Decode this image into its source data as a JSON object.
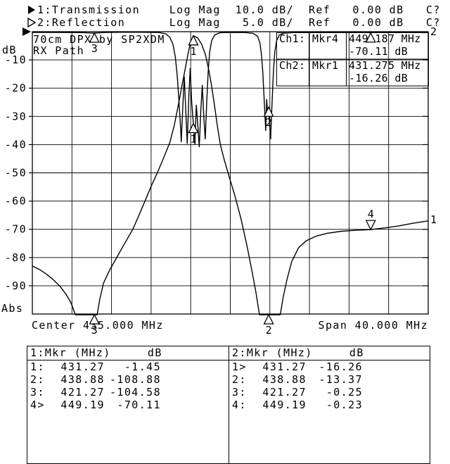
{
  "colors": {
    "fg": "#000000",
    "bg": "#ffffff"
  },
  "header": {
    "ch1_line": "1:Transmission    Log Mag  10.0 dB/  Ref   0.00 dB   C?",
    "ch2_line": "2:Reflection      Log Mag   5.0 dB/  Ref   0.00 dB   C?"
  },
  "graph": {
    "title_line1": "70cm DPX by SP2XDM",
    "title_line2": "RX Path",
    "y_axis_top_label": "dB",
    "y_axis_bottom_label": "Abs",
    "x_axis_left_label": "Center 435.000 MHz",
    "x_axis_right_label": "Span 40.000 MHz",
    "trace_end_label_ch1": "1",
    "trace_end_label_ch2": "2",
    "readouts": [
      {
        "ch": "Ch1:",
        "mkr": "Mkr4",
        "value_line1": "449.187 MHz",
        "value_line2": "-70.11 dB"
      },
      {
        "ch": "Ch2:",
        "mkr": "Mkr1",
        "value_line1": "431.275 MHz",
        "value_line2": "-16.26 dB"
      }
    ]
  },
  "chart_data": {
    "type": "line",
    "title": "70cm DPX by SP2XDM RX Path",
    "x_axis": {
      "center_mhz": 435.0,
      "span_mhz": 40.0,
      "start_mhz": 415.0,
      "stop_mhz": 455.0,
      "divisions": 10
    },
    "y_axis": {
      "ref_db": 0.0,
      "divisions": 10,
      "tick_labels": [
        "-10",
        "-20",
        "-30",
        "-40",
        "-50",
        "-60",
        "-70",
        "-80",
        "-90"
      ],
      "units": "dB",
      "mode": "Abs"
    },
    "series": [
      {
        "name": "ch1-transmission",
        "db_per_div": 10,
        "points": [
          [
            415.0,
            -83.0
          ],
          [
            415.7,
            -84.2
          ],
          [
            416.4,
            -85.8
          ],
          [
            417.1,
            -87.8
          ],
          [
            417.8,
            -90.2
          ],
          [
            418.4,
            -93.0
          ],
          [
            418.9,
            -96.0
          ],
          [
            419.35,
            -100.8
          ],
          [
            421.55,
            -100.8
          ],
          [
            421.8,
            -95.0
          ],
          [
            422.2,
            -89.0
          ],
          [
            422.8,
            -84.5
          ],
          [
            423.4,
            -80.8
          ],
          [
            424.0,
            -77.0
          ],
          [
            424.6,
            -73.4
          ],
          [
            425.2,
            -69.6
          ],
          [
            425.8,
            -64.8
          ],
          [
            426.4,
            -59.8
          ],
          [
            427.0,
            -54.8
          ],
          [
            427.7,
            -49.4
          ],
          [
            428.3,
            -44.4
          ],
          [
            428.9,
            -39.2
          ],
          [
            429.35,
            -33.0
          ],
          [
            429.75,
            -26.0
          ],
          [
            430.1,
            -19.5
          ],
          [
            430.45,
            -13.0
          ],
          [
            430.75,
            -7.5
          ],
          [
            431.0,
            -3.6
          ],
          [
            431.27,
            -1.45
          ],
          [
            431.7,
            -2.2
          ],
          [
            432.1,
            -4.4
          ],
          [
            432.5,
            -8.2
          ],
          [
            432.8,
            -13.0
          ],
          [
            433.1,
            -19.0
          ],
          [
            433.4,
            -26.0
          ],
          [
            433.7,
            -33.5
          ],
          [
            434.0,
            -40.0
          ],
          [
            434.4,
            -45.5
          ],
          [
            434.9,
            -51.5
          ],
          [
            435.5,
            -58.5
          ],
          [
            436.1,
            -66.5
          ],
          [
            436.7,
            -76.0
          ],
          [
            437.2,
            -85.0
          ],
          [
            437.6,
            -92.5
          ],
          [
            437.95,
            -100.8
          ],
          [
            440.05,
            -100.8
          ],
          [
            440.35,
            -94.0
          ],
          [
            440.75,
            -87.5
          ],
          [
            441.2,
            -81.5
          ],
          [
            441.9,
            -76.5
          ],
          [
            442.7,
            -74.0
          ],
          [
            443.7,
            -72.4
          ],
          [
            444.8,
            -71.4
          ],
          [
            446.2,
            -70.7
          ],
          [
            447.7,
            -70.35
          ],
          [
            449.19,
            -70.11
          ],
          [
            450.6,
            -69.5
          ],
          [
            452.0,
            -68.8
          ],
          [
            453.5,
            -67.8
          ],
          [
            455.0,
            -67.0
          ]
        ]
      },
      {
        "name": "ch2-reflection",
        "db_per_div": 5,
        "points": [
          [
            415.0,
            -0.12
          ],
          [
            417.0,
            -0.12
          ],
          [
            419.0,
            -0.15
          ],
          [
            420.3,
            -0.18
          ],
          [
            420.9,
            -0.24
          ],
          [
            421.27,
            -0.25
          ],
          [
            421.8,
            -0.2
          ],
          [
            422.5,
            -0.14
          ],
          [
            424.0,
            -0.1
          ],
          [
            426.0,
            -0.1
          ],
          [
            427.8,
            -0.15
          ],
          [
            428.5,
            -0.4
          ],
          [
            428.9,
            -1.0
          ],
          [
            429.2,
            -2.2
          ],
          [
            429.45,
            -4.5
          ],
          [
            429.65,
            -8.0
          ],
          [
            429.8,
            -12.0
          ],
          [
            429.95,
            -16.0
          ],
          [
            430.05,
            -19.5
          ],
          [
            430.2,
            -13.5
          ],
          [
            430.35,
            -8.0
          ],
          [
            430.5,
            -14.0
          ],
          [
            430.65,
            -19.8
          ],
          [
            430.8,
            -12.0
          ],
          [
            430.95,
            -6.5
          ],
          [
            431.1,
            -12.5
          ],
          [
            431.27,
            -16.26
          ],
          [
            431.42,
            -20.0
          ],
          [
            431.57,
            -13.0
          ],
          [
            431.72,
            -16.5
          ],
          [
            431.87,
            -20.4
          ],
          [
            432.02,
            -14.0
          ],
          [
            432.17,
            -9.5
          ],
          [
            432.32,
            -15.0
          ],
          [
            432.47,
            -19.0
          ],
          [
            432.62,
            -12.5
          ],
          [
            432.77,
            -7.0
          ],
          [
            432.92,
            -3.6
          ],
          [
            433.12,
            -1.6
          ],
          [
            433.42,
            -0.6
          ],
          [
            433.9,
            -0.2
          ],
          [
            435.0,
            -0.12
          ],
          [
            436.5,
            -0.15
          ],
          [
            437.3,
            -0.3
          ],
          [
            437.75,
            -0.8
          ],
          [
            438.0,
            -2.0
          ],
          [
            438.15,
            -4.0
          ],
          [
            438.28,
            -7.0
          ],
          [
            438.38,
            -10.5
          ],
          [
            438.48,
            -14.0
          ],
          [
            438.58,
            -17.5
          ],
          [
            438.68,
            -12.0
          ],
          [
            438.78,
            -15.0
          ],
          [
            438.88,
            -13.37
          ],
          [
            438.98,
            -16.5
          ],
          [
            439.08,
            -19.0
          ],
          [
            439.16,
            -15.0
          ],
          [
            439.26,
            -11.0
          ],
          [
            439.36,
            -7.0
          ],
          [
            439.5,
            -3.6
          ],
          [
            439.68,
            -1.6
          ],
          [
            439.95,
            -0.6
          ],
          [
            440.4,
            -0.25
          ],
          [
            441.5,
            -0.15
          ],
          [
            445.0,
            -0.1
          ],
          [
            450.0,
            -0.1
          ],
          [
            455.0,
            -0.08
          ]
        ]
      }
    ],
    "markers": [
      {
        "channel": 1,
        "label": "1",
        "mhz": 431.27,
        "db": -1.45,
        "orientation": "below",
        "label_visible": true
      },
      {
        "channel": 1,
        "label": "2",
        "mhz": 438.88,
        "db": -108.88,
        "orientation": "below",
        "label_visible": true
      },
      {
        "channel": 1,
        "label": "3",
        "mhz": 421.27,
        "db": -104.58,
        "orientation": "below",
        "label_visible": true
      },
      {
        "channel": 1,
        "label": "4",
        "mhz": 449.19,
        "db": -70.11,
        "orientation": "above",
        "label_visible": true
      },
      {
        "channel": 2,
        "label": "1",
        "mhz": 431.27,
        "db": -16.26,
        "orientation": "below",
        "label_visible": true
      },
      {
        "channel": 2,
        "label": "2",
        "mhz": 438.88,
        "db": -13.37,
        "orientation": "below",
        "label_visible": true
      },
      {
        "channel": 2,
        "label": "3",
        "mhz": 421.27,
        "db": -0.25,
        "orientation": "below",
        "label_visible": true
      },
      {
        "channel": 2,
        "label": "4",
        "mhz": 449.19,
        "db": -0.23,
        "orientation": "below",
        "label_visible": false
      }
    ]
  },
  "tables": [
    {
      "header": "1:Mkr (MHz)     dB",
      "rows": [
        {
          "mkr": "1:",
          "mhz": "431.27",
          "db": "-1.45"
        },
        {
          "mkr": "2:",
          "mhz": "438.88",
          "db": "-108.88"
        },
        {
          "mkr": "3:",
          "mhz": "421.27",
          "db": "-104.58"
        },
        {
          "mkr": "4>",
          "mhz": "449.19",
          "db": "-70.11"
        }
      ]
    },
    {
      "header": "2:Mkr (MHz)     dB",
      "rows": [
        {
          "mkr": "1>",
          "mhz": "431.27",
          "db": "-16.26"
        },
        {
          "mkr": "2:",
          "mhz": "438.88",
          "db": "-13.37"
        },
        {
          "mkr": "3:",
          "mhz": "421.27",
          "db": "-0.25"
        },
        {
          "mkr": "4:",
          "mhz": "449.19",
          "db": "-0.23"
        }
      ]
    }
  ]
}
